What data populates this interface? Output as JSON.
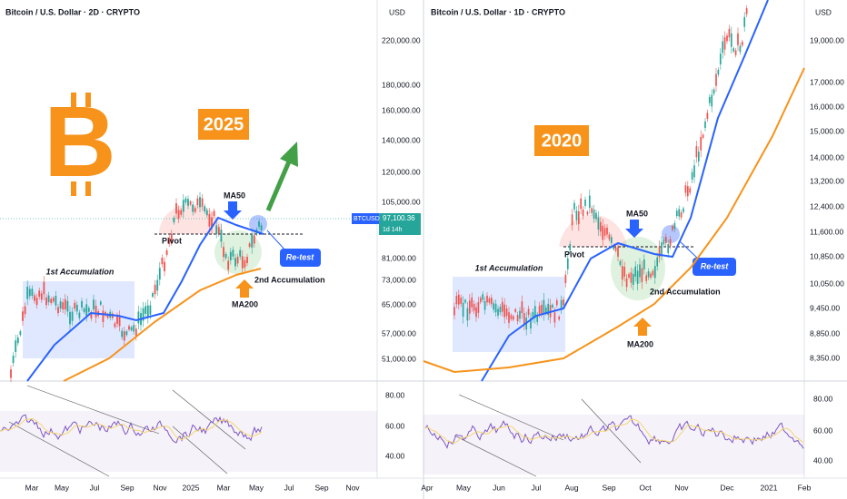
{
  "left": {
    "title": "Bitcoin / U.S. Dollar · 2D · CRYPTO",
    "currency": "USD",
    "price_labels": [
      "220,000.00",
      "180,000.00",
      "160,000.00",
      "140,000.00",
      "120,000.00",
      "105,000.00",
      "81,000.00",
      "73,000.00",
      "65,000.00",
      "57,000.00",
      "51,000.00"
    ],
    "rsi_labels": [
      "80.00",
      "60.00",
      "40.00"
    ],
    "time_labels": [
      "Mar",
      "May",
      "Jul",
      "Sep",
      "Nov",
      "2025",
      "Mar",
      "May",
      "Jul",
      "Sep",
      "Nov"
    ],
    "ticker": {
      "symbol": "BTCUSD",
      "price": "97,100.36",
      "countdown": "1d 14h"
    },
    "annotations": {
      "year": "2025",
      "first_accumulation": "1st Accumulation",
      "pivot": "Pivot",
      "ma50": "MA50",
      "retest": "Re-test",
      "second_accumulation": "2nd Accumulation",
      "ma200": "MA200"
    }
  },
  "right": {
    "title": "Bitcoin / U.S. Dollar · 1D · CRYPTO",
    "currency": "USD",
    "price_labels": [
      "19,000.00",
      "17,000.00",
      "16,000.00",
      "15,000.00",
      "14,000.00",
      "13,200.00",
      "12,400.00",
      "11,600.00",
      "10,850.00",
      "10,050.00",
      "9,450.00",
      "8,850.00",
      "8,350.00"
    ],
    "rsi_labels": [
      "80.00",
      "60.00",
      "40.00"
    ],
    "time_labels": [
      "Apr",
      "May",
      "Jun",
      "Jul",
      "Aug",
      "Sep",
      "Oct",
      "Nov",
      "Dec",
      "2021",
      "Feb"
    ],
    "annotations": {
      "year": "2020",
      "first_accumulation": "1st Accumulation",
      "pivot": "Pivot",
      "ma50": "MA50",
      "retest": "Re-test",
      "second_accumulation": "2nd Accumulation",
      "ma200": "MA200"
    }
  }
}
